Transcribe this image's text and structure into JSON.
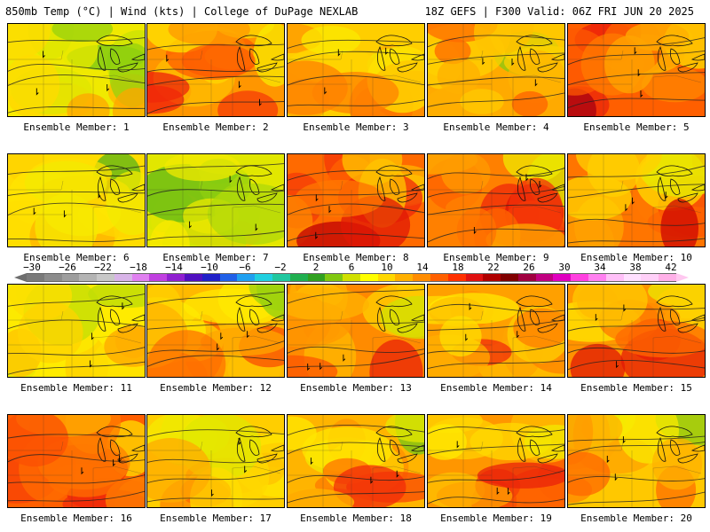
{
  "header": {
    "left": "850mb Temp (°C) | Wind (kts) | College of DuPage NEXLAB",
    "right": "18Z GEFS | F300 Valid: 06Z FRI JUN 20 2025"
  },
  "colorbar": {
    "labels": [
      "−30",
      "−26",
      "−22",
      "−18",
      "−14",
      "−10",
      "−6",
      "−2",
      "2",
      "6",
      "10",
      "14",
      "18",
      "22",
      "26",
      "30",
      "34",
      "38",
      "42"
    ],
    "colors": [
      "#7a7a7a",
      "#8c8c8c",
      "#9e9e9e",
      "#b4b4b4",
      "#c8c8c8",
      "#d8b4e8",
      "#e080f0",
      "#c040e0",
      "#9020d0",
      "#5010c0",
      "#2020c8",
      "#2060e8",
      "#20a0f0",
      "#20d0e0",
      "#20c8a0",
      "#20b050",
      "#30a020",
      "#80c810",
      "#d0e000",
      "#ffff00",
      "#ffd800",
      "#ffb000",
      "#ff8c00",
      "#ff6000",
      "#ff3000",
      "#e01010",
      "#b00000",
      "#800000",
      "#a00040",
      "#c00080",
      "#e000c0",
      "#ff40e0",
      "#ff80f0",
      "#ffc0f8",
      "#ffe0ff",
      "#ffd0f8",
      "#ffb0e8"
    ]
  },
  "panels": [
    {
      "label": "Ensemble Member: 1",
      "level": 0.35
    },
    {
      "label": "Ensemble Member: 2",
      "level": 0.62
    },
    {
      "label": "Ensemble Member: 3",
      "level": 0.5
    },
    {
      "label": "Ensemble Member: 4",
      "level": 0.58
    },
    {
      "label": "Ensemble Member: 5",
      "level": 0.72
    },
    {
      "label": "Ensemble Member: 6",
      "level": 0.45
    },
    {
      "label": "Ensemble Member: 7",
      "level": 0.3
    },
    {
      "label": "Ensemble Member: 8",
      "level": 0.7
    },
    {
      "label": "Ensemble Member: 9",
      "level": 0.66
    },
    {
      "label": "Ensemble Member: 10",
      "level": 0.68
    },
    {
      "label": "Ensemble Member: 11",
      "level": 0.4
    },
    {
      "label": "Ensemble Member: 12",
      "level": 0.55
    },
    {
      "label": "Ensemble Member: 13",
      "level": 0.64
    },
    {
      "label": "Ensemble Member: 14",
      "level": 0.6
    },
    {
      "label": "Ensemble Member: 15",
      "level": 0.62
    },
    {
      "label": "Ensemble Member: 16",
      "level": 0.72
    },
    {
      "label": "Ensemble Member: 17",
      "level": 0.5
    },
    {
      "label": "Ensemble Member: 18",
      "level": 0.56
    },
    {
      "label": "Ensemble Member: 19",
      "level": 0.62
    },
    {
      "label": "Ensemble Member: 20",
      "level": 0.52
    }
  ]
}
